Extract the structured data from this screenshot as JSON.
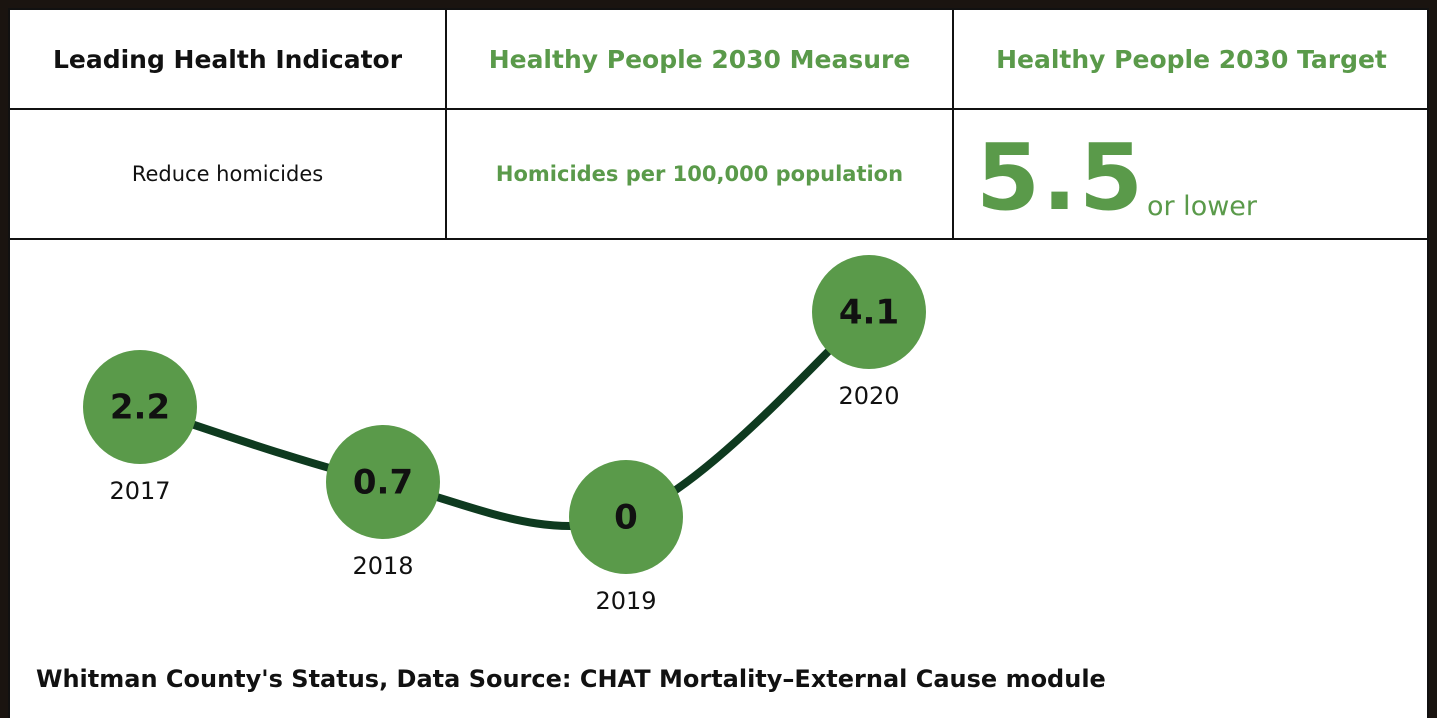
{
  "table": {
    "header": [
      "Leading Health Indicator",
      "Healthy People 2030 Measure",
      "Healthy People 2030 Target"
    ],
    "row": {
      "indicator": "Reduce homicides",
      "measure": "Homicides per 100,000 population",
      "target": 5.5,
      "target_note": "or lower"
    }
  },
  "chart_data": {
    "type": "line",
    "title": "Whitman County's Status, Data Source: CHAT Mortality–External Cause module",
    "categories": [
      "2017",
      "2018",
      "2019",
      "2020"
    ],
    "values": [
      2.2,
      0.7,
      0,
      4.1
    ],
    "color": "#5a9a4a",
    "line_color": "#0e3a1f"
  }
}
